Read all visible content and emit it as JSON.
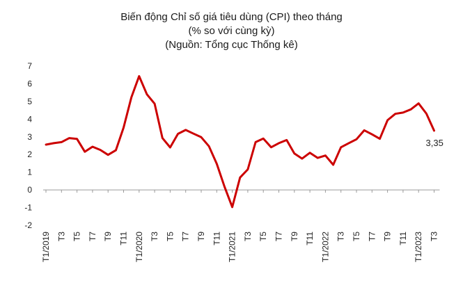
{
  "chart_data": {
    "type": "line",
    "title_lines": [
      "Biến động Chỉ số giá tiêu dùng (CPI) theo tháng",
      "(% so với cùng kỳ)",
      "(Nguồn: Tổng cục Thống kê)"
    ],
    "xlabel": "",
    "ylabel": "",
    "ylim": [
      -2,
      7
    ],
    "yticks": [
      -2,
      -1,
      0,
      1,
      2,
      3,
      4,
      5,
      6,
      7
    ],
    "grid": false,
    "legend": "none",
    "line_color": "#cc0000",
    "tick_labels": [
      {
        "index": 0,
        "label": "T1/2019"
      },
      {
        "index": 2,
        "label": "T3"
      },
      {
        "index": 4,
        "label": "T5"
      },
      {
        "index": 6,
        "label": "T7"
      },
      {
        "index": 8,
        "label": "T9"
      },
      {
        "index": 10,
        "label": "T11"
      },
      {
        "index": 12,
        "label": "T1/2020"
      },
      {
        "index": 14,
        "label": "T3"
      },
      {
        "index": 16,
        "label": "T5"
      },
      {
        "index": 18,
        "label": "T7"
      },
      {
        "index": 20,
        "label": "T9"
      },
      {
        "index": 22,
        "label": "T11"
      },
      {
        "index": 24,
        "label": "T1/2021"
      },
      {
        "index": 26,
        "label": "T3"
      },
      {
        "index": 28,
        "label": "T5"
      },
      {
        "index": 30,
        "label": "T7"
      },
      {
        "index": 32,
        "label": "T9"
      },
      {
        "index": 34,
        "label": "T11"
      },
      {
        "index": 36,
        "label": "T1/2022"
      },
      {
        "index": 38,
        "label": "T3"
      },
      {
        "index": 40,
        "label": "T5"
      },
      {
        "index": 42,
        "label": "T7"
      },
      {
        "index": 44,
        "label": "T9"
      },
      {
        "index": 46,
        "label": "T11"
      },
      {
        "index": 48,
        "label": "T1/2023"
      },
      {
        "index": 50,
        "label": "T3"
      }
    ],
    "values": [
      2.56,
      2.64,
      2.7,
      2.93,
      2.88,
      2.16,
      2.44,
      2.26,
      1.98,
      2.24,
      3.52,
      5.23,
      6.43,
      5.4,
      4.87,
      2.93,
      2.4,
      3.17,
      3.39,
      3.18,
      2.98,
      2.47,
      1.48,
      0.19,
      -0.97,
      0.7,
      1.16,
      2.7,
      2.9,
      2.41,
      2.64,
      2.82,
      2.06,
      1.77,
      2.1,
      1.81,
      1.94,
      1.42,
      2.41,
      2.64,
      2.86,
      3.37,
      3.14,
      2.89,
      3.94,
      4.3,
      4.37,
      4.55,
      4.89,
      4.31,
      3.35
    ],
    "annotations": [
      {
        "index": 50,
        "text": "3,35"
      }
    ]
  }
}
